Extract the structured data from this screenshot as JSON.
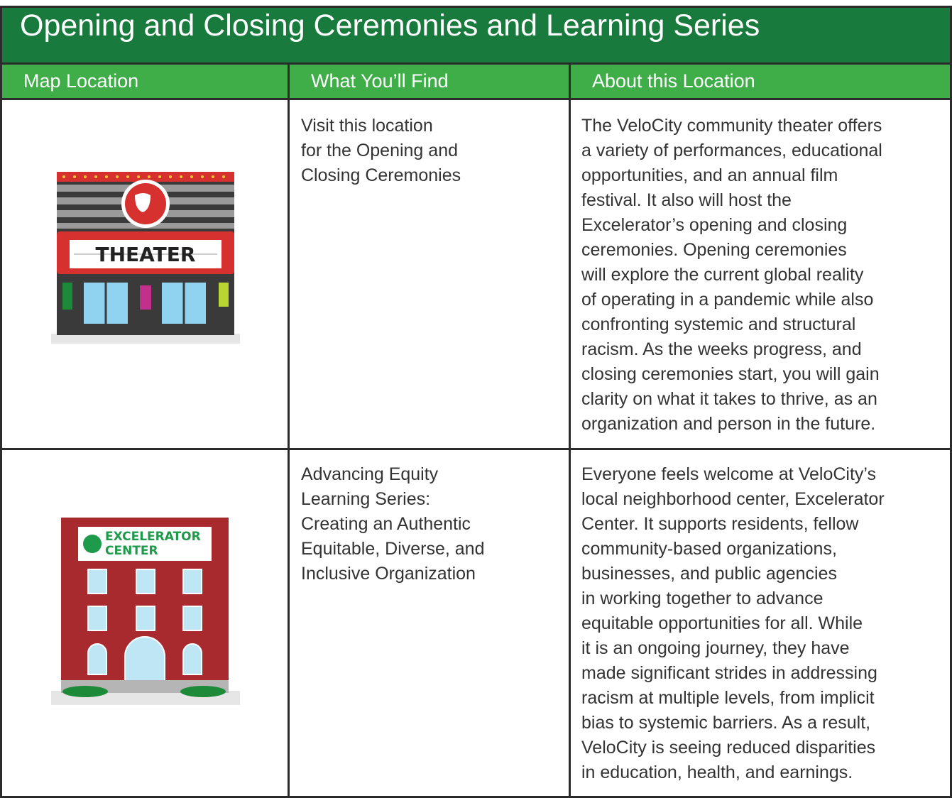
{
  "title": "Opening and Closing Ceremonies and Learning Series",
  "table": {
    "headers": [
      "Map Location",
      "What You’ll Find",
      "About this Location"
    ],
    "rows": [
      {
        "sign": [
          "THEATER"
        ],
        "find": [
          "Visit this location",
          "for the Opening and",
          "Closing Ceremonies"
        ],
        "about": [
          "The VeloCity community theater offers",
          "a variety of performances, educational",
          "opportunities, and an annual film",
          "festival. It also will host the",
          "Excelerator’s opening and closing",
          "ceremonies. Opening ceremonies",
          "will explore the current global reality",
          "of operating in a pandemic while also",
          "confronting systemic and structural",
          "racism. As the weeks progress, and",
          "closing ceremonies start, you will gain",
          "clarity on what it takes to thrive, as an",
          "organization and person in the future."
        ]
      },
      {
        "sign": [
          "EXCELERATOR",
          "CENTER"
        ],
        "find": [
          "Advancing Equity",
          "Learning Series:",
          "Creating an Authentic",
          "Equitable, Diverse, and",
          "Inclusive Organization"
        ],
        "about": [
          "Everyone feels welcome at VeloCity’s",
          "local neighborhood center, Excelerator",
          "Center. It supports residents, fellow",
          "community-based organizations,",
          "businesses, and public agencies",
          "in working together to advance",
          "equitable opportunities for all. While",
          "it is an ongoing journey, they have",
          "made significant strides in addressing",
          "racism at multiple levels, from implicit",
          "bias to systemic barriers. As a result,",
          "VeloCity is seeing reduced disparities",
          "in education, health, and earnings."
        ]
      }
    ]
  }
}
